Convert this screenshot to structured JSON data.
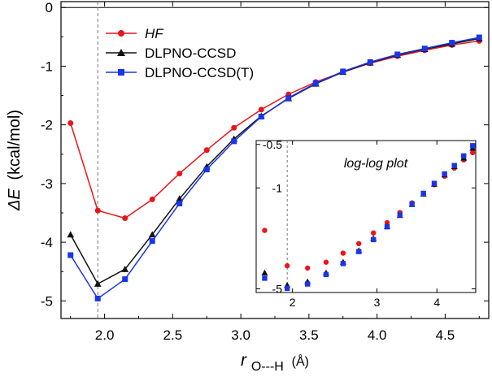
{
  "chart_data": {
    "main": {
      "type": "line",
      "xlabel": "r",
      "xlabel_sub": "O---H",
      "xlabel_unit": "(Å)",
      "ylabel": "ΔE (kcal/mol)",
      "ylabel_symbol": "ΔE",
      "ylabel_unit": "(kcal/mol)",
      "xlim": [
        1.68,
        4.82
      ],
      "ylim": [
        -5.3,
        0.1
      ],
      "xticks": [
        "2.0",
        "2.5",
        "3.0",
        "3.5",
        "4.0",
        "4.5"
      ],
      "xtick_values": [
        2.0,
        2.5,
        3.0,
        3.5,
        4.0,
        4.5
      ],
      "yticks": [
        "0",
        "-1",
        "-2",
        "-3",
        "-4",
        "-5"
      ],
      "ytick_values": [
        0,
        -1,
        -2,
        -3,
        -4,
        -5
      ],
      "reference_vline_x": 1.95,
      "zero_line": true,
      "legend_position": "top-left",
      "x": [
        1.75,
        1.95,
        2.15,
        2.35,
        2.55,
        2.75,
        2.95,
        3.15,
        3.35,
        3.55,
        3.75,
        3.95,
        4.15,
        4.35,
        4.55,
        4.75
      ],
      "series": [
        {
          "name": "HF",
          "color": "#e8161b",
          "marker": "circle",
          "italic": true,
          "values": [
            -1.97,
            -3.46,
            -3.59,
            -3.27,
            -2.83,
            -2.43,
            -2.05,
            -1.74,
            -1.48,
            -1.27,
            -1.1,
            -0.95,
            -0.83,
            -0.73,
            -0.64,
            -0.57
          ]
        },
        {
          "name": "DLPNO-CCSD",
          "color": "#111111",
          "marker": "triangle",
          "italic": false,
          "values": [
            -3.87,
            -4.71,
            -4.46,
            -3.87,
            -3.26,
            -2.71,
            -2.24,
            -1.85,
            -1.55,
            -1.3,
            -1.1,
            -0.94,
            -0.81,
            -0.71,
            -0.62,
            -0.53
          ]
        },
        {
          "name": "DLPNO-CCSD(T)",
          "color": "#1a35e8",
          "marker": "square",
          "italic": false,
          "values": [
            -4.22,
            -4.96,
            -4.63,
            -3.98,
            -3.34,
            -2.76,
            -2.28,
            -1.86,
            -1.54,
            -1.29,
            -1.09,
            -0.93,
            -0.8,
            -0.7,
            -0.6,
            -0.51
          ]
        }
      ]
    },
    "inset": {
      "type": "scatter",
      "title": "log-log plot",
      "xscale": "log",
      "yscale": "log",
      "xlim": [
        1.68,
        4.82
      ],
      "ylim": [
        -5.3,
        -0.47
      ],
      "xticks": [
        "2",
        "3",
        "4"
      ],
      "xtick_values": [
        2,
        3,
        4
      ],
      "yticks": [
        "-0.5",
        "-1",
        "-5"
      ],
      "ytick_values": [
        -0.5,
        -1,
        -5
      ],
      "reference_vline_x": 1.95
    }
  }
}
